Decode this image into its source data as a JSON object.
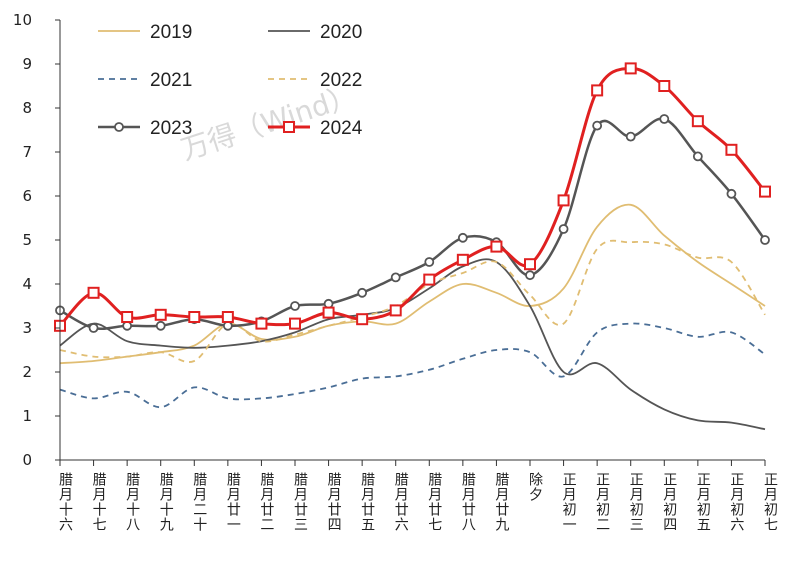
{
  "chart_data": {
    "type": "line",
    "categories": [
      "腊月十六",
      "腊月十七",
      "腊月十八",
      "腊月十九",
      "腊月二十",
      "腊月廿一",
      "腊月廿二",
      "腊月廿三",
      "腊月廿四",
      "腊月廿五",
      "腊月廿六",
      "腊月廿七",
      "腊月廿八",
      "腊月廿九",
      "除夕",
      "正月初一",
      "正月初二",
      "正月初三",
      "正月初四",
      "正月初五",
      "正月初六",
      "正月初七"
    ],
    "ylim": [
      0,
      10
    ],
    "yticks": [
      "0",
      "1",
      "2",
      "3",
      "4",
      "5",
      "6",
      "7",
      "8",
      "9",
      "10"
    ],
    "legend_position": "top",
    "watermark": "万得（Wind）",
    "series": [
      {
        "name": "2019",
        "color": "#e0bd72",
        "dash": "solid",
        "markers": false,
        "values": [
          2.2,
          2.25,
          2.35,
          2.45,
          2.6,
          3.1,
          2.75,
          2.8,
          3.05,
          3.15,
          3.1,
          3.6,
          4.0,
          3.8,
          3.5,
          3.9,
          5.3,
          5.8,
          5.1,
          4.5,
          4.0,
          3.5
        ]
      },
      {
        "name": "2020",
        "color": "#555555",
        "dash": "solid",
        "markers": false,
        "values": [
          2.6,
          3.1,
          2.7,
          2.6,
          2.55,
          2.6,
          2.7,
          2.9,
          3.2,
          3.3,
          3.45,
          3.9,
          4.4,
          4.5,
          3.5,
          2.0,
          2.2,
          1.6,
          1.15,
          0.9,
          0.85,
          0.7
        ]
      },
      {
        "name": "2021",
        "color": "#4a6e96",
        "dash": "dashed",
        "markers": false,
        "values": [
          1.6,
          1.4,
          1.55,
          1.2,
          1.65,
          1.4,
          1.4,
          1.5,
          1.65,
          1.85,
          1.9,
          2.05,
          2.3,
          2.5,
          2.45,
          1.9,
          2.9,
          3.1,
          3.0,
          2.8,
          2.9,
          2.4
        ]
      },
      {
        "name": "2022",
        "color": "#e0bd72",
        "dash": "dashed",
        "markers": false,
        "values": [
          2.5,
          2.35,
          2.35,
          2.45,
          2.25,
          3.1,
          2.7,
          2.85,
          3.05,
          3.25,
          3.5,
          4.0,
          4.25,
          4.5,
          3.75,
          3.1,
          4.8,
          4.95,
          4.9,
          4.6,
          4.5,
          3.3
        ]
      },
      {
        "name": "2023",
        "color": "#555555",
        "dash": "solid",
        "markers": "circle",
        "values": [
          3.4,
          3.0,
          3.05,
          3.05,
          3.2,
          3.05,
          3.15,
          3.5,
          3.55,
          3.8,
          4.15,
          4.5,
          5.05,
          4.95,
          4.2,
          5.25,
          7.6,
          7.35,
          7.75,
          6.9,
          6.05,
          5.0
        ]
      },
      {
        "name": "2024",
        "color": "#e02020",
        "dash": "solid",
        "markers": "square",
        "values": [
          3.05,
          3.8,
          3.25,
          3.3,
          3.25,
          3.25,
          3.1,
          3.1,
          3.35,
          3.2,
          3.4,
          4.1,
          4.55,
          4.85,
          4.45,
          5.9,
          8.4,
          8.9,
          8.5,
          7.7,
          7.05,
          6.1
        ]
      }
    ]
  }
}
